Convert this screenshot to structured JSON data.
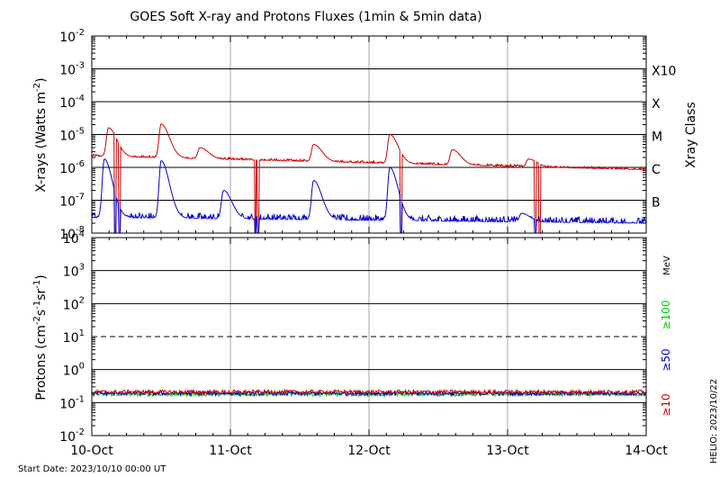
{
  "chart_data": [
    {
      "type": "line",
      "panel": "xray",
      "title": "GOES Soft X-ray and Protons Fluxes   (1min & 5min data)",
      "ylabel_parts": {
        "pre": "X-rays (Watts m",
        "sup": "-2",
        "post": ")"
      },
      "yscale": "log",
      "ylim": [
        "1e-8",
        "1e-2"
      ],
      "ytick_exponents": [
        -2,
        -3,
        -4,
        -5,
        -6,
        -7,
        -8
      ],
      "ytick_base": "10",
      "xrange_days": [
        0,
        4
      ],
      "right_labels": [
        {
          "label": "X10",
          "exp": -3
        },
        {
          "label": "X",
          "exp": -4
        },
        {
          "label": "M",
          "exp": -5
        },
        {
          "label": "C",
          "exp": -6
        },
        {
          "label": "B",
          "exp": -7
        }
      ],
      "right_axis_title": "Xray Class",
      "series": [
        {
          "color": "#cc0000",
          "baseline_start": "2.2e-6",
          "baseline_end": "8.5e-7",
          "peaks": [
            {
              "day": 0.12,
              "value": "1.6e-5"
            },
            {
              "day": 0.5,
              "value": "2.1e-5"
            },
            {
              "day": 0.78,
              "value": "4.0e-6"
            },
            {
              "day": 1.6,
              "value": "5.0e-6"
            },
            {
              "day": 2.15,
              "value": "1.0e-5"
            },
            {
              "day": 2.6,
              "value": "3.5e-6"
            },
            {
              "day": 3.15,
              "value": "1.8e-6"
            }
          ]
        },
        {
          "color": "#0000cc",
          "baseline_start": "3.0e-8",
          "baseline_end": "2.0e-8",
          "peaks": [
            {
              "day": 0.09,
              "value": "1.8e-6"
            },
            {
              "day": 0.5,
              "value": "1.6e-6"
            },
            {
              "day": 0.95,
              "value": "2.0e-7"
            },
            {
              "day": 1.6,
              "value": "4.0e-7"
            },
            {
              "day": 2.15,
              "value": "1.0e-6"
            },
            {
              "day": 3.1,
              "value": "4.0e-8"
            }
          ]
        }
      ]
    },
    {
      "type": "line",
      "panel": "protons",
      "ylabel_parts": {
        "pre": "Protons (cm",
        "sup1": "-2",
        "mid1": "s",
        "sup2": "-1",
        "mid2": "sr",
        "sup3": "-1",
        "post": ")"
      },
      "yscale": "log",
      "ylim": [
        "1e-2",
        "1e4"
      ],
      "ytick_exponents": [
        4,
        3,
        2,
        1,
        0,
        -1,
        -2
      ],
      "ytick_base": "10",
      "threshold": {
        "value": "10",
        "style": "dashed"
      },
      "xrange_days": [
        0,
        4
      ],
      "xtick_labels": [
        "10-Oct",
        "11-Oct",
        "12-Oct",
        "13-Oct",
        "14-Oct"
      ],
      "energy_unit": "MeV",
      "series": [
        {
          "name": "≥100",
          "color": "#00cc00",
          "level": "0.18"
        },
        {
          "name": "≥50",
          "color": "#0000cc",
          "level": "0.19"
        },
        {
          "name": "≥10",
          "color": "#cc0000",
          "level": "0.21"
        }
      ]
    }
  ],
  "start_date": "Start Date: 2023/10/10 00:00 UT",
  "helio": "HELIO: 2023/10/22"
}
